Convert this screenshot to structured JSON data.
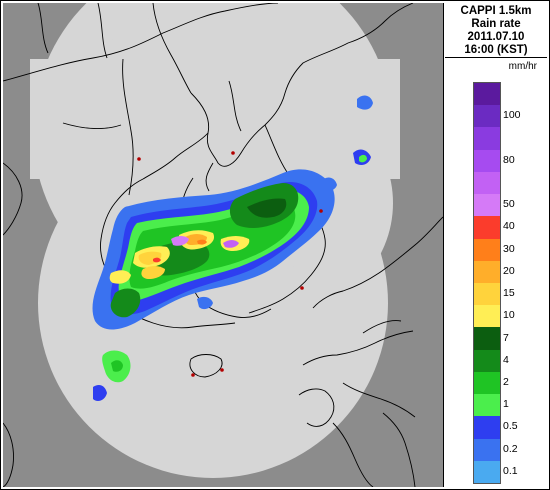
{
  "header": {
    "line1": "CAPPI 1.5km",
    "line2": "Rain rate",
    "line3": "2011.07.10",
    "line4": "16:00 (KST)"
  },
  "legend": {
    "unit": "mm/hr",
    "levels": [
      {
        "label": "",
        "color": "#5b1a9e"
      },
      {
        "label": "100",
        "color": "#6b2bc2"
      },
      {
        "label": "",
        "color": "#8a3be0"
      },
      {
        "label": "80",
        "color": "#a64bf0"
      },
      {
        "label": "",
        "color": "#c261f4"
      },
      {
        "label": "50",
        "color": "#d57af7"
      },
      {
        "label": "40",
        "color": "#fb3c2c"
      },
      {
        "label": "30",
        "color": "#ff7f1a"
      },
      {
        "label": "20",
        "color": "#ffae2a"
      },
      {
        "label": "15",
        "color": "#ffd33c"
      },
      {
        "label": "10",
        "color": "#ffee55"
      },
      {
        "label": "7",
        "color": "#0c5e10"
      },
      {
        "label": "4",
        "color": "#148a1a"
      },
      {
        "label": "2",
        "color": "#1fc424"
      },
      {
        "label": "1",
        "color": "#4bee4c"
      },
      {
        "label": "0.5",
        "color": "#2e3ef0"
      },
      {
        "label": "0.2",
        "color": "#3a72f0"
      },
      {
        "label": "0.1",
        "color": "#4aaaf0"
      }
    ]
  },
  "map": {
    "background_color": "#8c8c8c",
    "coverage_color": "#d6d6d6",
    "coastline_color": "#000000"
  }
}
